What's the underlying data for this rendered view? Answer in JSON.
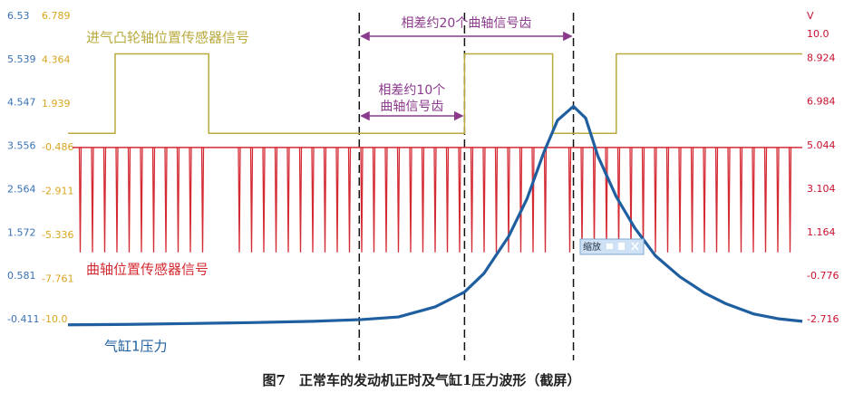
{
  "chart_data": {
    "type": "line",
    "caption": "图7　正常车的发动机正时及气缸1压力波形（截屏）",
    "xlim": [
      0,
      60
    ],
    "ylim": [
      -0.411,
      6.53
    ],
    "yticks": [
      6.53,
      5.539,
      4.547,
      3.556,
      2.564,
      1.572,
      0.581,
      -0.411
    ],
    "y2lim": [
      -10,
      6.789
    ],
    "y2ticks": [
      6.789,
      4.364,
      1.939,
      -0.486,
      -2.911,
      -5.336,
      -7.761,
      {
        "value": -10,
        "label": "-10.0"
      }
    ],
    "y3label": "V",
    "y3lim": [
      -2.716,
      10
    ],
    "y3ticks": [
      {
        "value": 10,
        "label": "10.0"
      },
      8.924,
      6.984,
      5.044,
      3.104,
      1.164,
      -0.776,
      -2.716
    ],
    "series": [
      {
        "name": "进气凸轮轴位置传感器信号",
        "color": "#b8aa3c",
        "axis": "y2",
        "x": [
          0,
          3.85,
          3.85,
          11.5,
          11.5,
          32.4,
          32.4,
          39.6,
          39.6,
          44.8,
          44.8,
          60
        ],
        "values": [
          0.31,
          0.31,
          4.71,
          4.71,
          0.31,
          0.31,
          4.71,
          4.71,
          0.31,
          0.31,
          4.71,
          4.71
        ]
      },
      {
        "name": "曲轴位置传感器信号",
        "color": "#d42a32",
        "axis": "y3",
        "level": 4.96,
        "x": [
          1,
          2,
          3,
          4,
          5,
          6,
          7,
          8,
          9,
          10,
          11,
          12,
          13,
          14,
          15,
          16,
          17,
          18,
          19,
          20,
          21,
          22,
          23,
          24,
          25,
          26,
          27,
          28,
          29,
          30,
          31,
          32,
          33,
          34,
          35,
          36,
          37,
          38,
          39,
          40,
          41,
          42,
          43,
          44,
          45,
          46,
          47,
          48,
          49,
          50,
          51,
          52,
          53,
          54,
          55,
          56,
          57,
          58,
          59
        ],
        "values": [
          0.28,
          0.28,
          0.28,
          0.28,
          0.28,
          0.28,
          0.28,
          0.28,
          0.28,
          0.28,
          0.28,
          null,
          null,
          0.28,
          0.28,
          0.28,
          0.28,
          0.28,
          0.28,
          0.28,
          0.28,
          0.28,
          0.28,
          0.28,
          0.28,
          0.28,
          0.28,
          0.28,
          0.28,
          0.28,
          0.28,
          0.28,
          0.28,
          0.28,
          0.28,
          0.28,
          0.28,
          0.28,
          0.28,
          null,
          0.28,
          0.28,
          0.28,
          0.28,
          0.28,
          0.28,
          0.28,
          0.28,
          0.28,
          0.28,
          0.28,
          0.28,
          0.28,
          0.28,
          0.28,
          0.28,
          0.28,
          0.28,
          0.28
        ]
      },
      {
        "name": "气缸1压力",
        "color": "#1f5fa0",
        "axis": "y",
        "x": [
          0,
          5,
          10,
          15,
          20,
          24,
          27,
          30,
          32.4,
          34,
          36,
          37.5,
          38.9,
          40,
          41.3,
          42.3,
          43.3,
          44.8,
          46.3,
          48,
          50,
          52,
          53.7,
          56,
          58,
          60
        ],
        "values": [
          -0.53,
          -0.52,
          -0.5,
          -0.48,
          -0.45,
          -0.41,
          -0.35,
          -0.12,
          0.22,
          0.65,
          1.49,
          2.35,
          3.43,
          4.15,
          4.47,
          4.2,
          3.33,
          2.4,
          1.69,
          1.05,
          0.57,
          0.2,
          -0.04,
          -0.28,
          -0.39,
          -0.45
        ]
      }
    ],
    "markers": [
      23.8,
      32.4,
      41.3
    ],
    "annotations": [
      {
        "text": [
          "相差约20个曲轴信号齿"
        ],
        "from": 23.8,
        "to": 41.3
      },
      {
        "text": [
          "相差约10个",
          "曲轴信号齿"
        ],
        "from": 23.8,
        "to": 32.4
      }
    ],
    "zoom_label": "缩放"
  }
}
